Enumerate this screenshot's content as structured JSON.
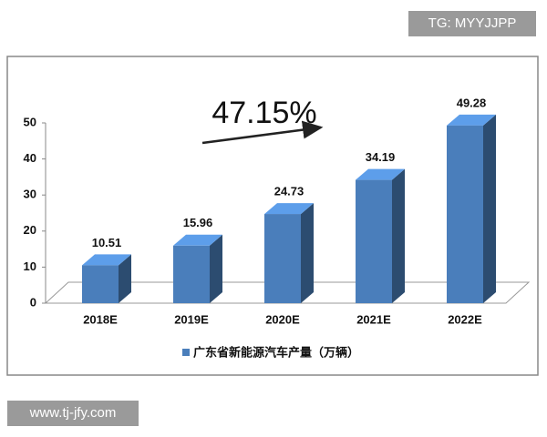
{
  "chart_data": {
    "type": "bar",
    "annotation": "47.15%",
    "categories": [
      "2018E",
      "2019E",
      "2020E",
      "2021E",
      "2022E"
    ],
    "series": [
      {
        "name": "广东省新能源汽车产量（万辆）",
        "color": "#4a7ebb",
        "values": [
          10.51,
          15.96,
          24.73,
          34.19,
          49.28
        ]
      }
    ],
    "ylim": [
      0,
      50
    ],
    "yticks": [
      0,
      10,
      20,
      30,
      40,
      50
    ],
    "grid": false,
    "legend": "bottom"
  },
  "watermarks": [
    "TG: MYYJJPP",
    "www.tj-jfy.com"
  ]
}
